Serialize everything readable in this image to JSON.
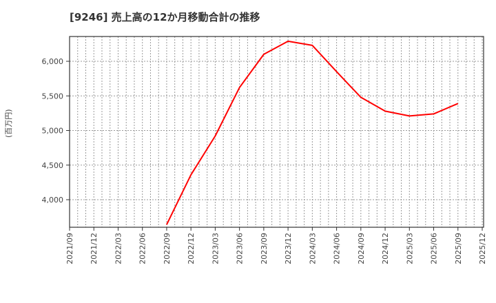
{
  "title": "[9246]  売上高の12か月移動合計の推移",
  "y_axis_label": "(百万円)",
  "colors": {
    "line": "#ff0000",
    "grid": "#999999",
    "axis": "#333333"
  },
  "chart_data": {
    "type": "line",
    "title": "[9246]  売上高の12か月移動合計の推移",
    "xlabel": "",
    "ylabel": "(百万円)",
    "ylim": [
      3600,
      6360
    ],
    "grid": true,
    "legend": "none",
    "x_ticks": [
      "2021/09",
      "2021/12",
      "2022/03",
      "2022/06",
      "2022/09",
      "2022/12",
      "2023/03",
      "2023/06",
      "2023/09",
      "2023/12",
      "2024/03",
      "2024/06",
      "2024/09",
      "2024/12",
      "2025/03",
      "2025/06",
      "2025/09",
      "2025/12"
    ],
    "y_ticks": [
      "4,000",
      "4,500",
      "5,000",
      "5,500",
      "6,000"
    ],
    "y_tick_values": [
      4000,
      4500,
      5000,
      5500,
      6000
    ],
    "series": [
      {
        "name": "売上高(12か月移動合計)",
        "x": [
          "2022/09",
          "2022/12",
          "2023/03",
          "2023/06",
          "2023/09",
          "2023/12",
          "2024/03",
          "2024/06",
          "2024/09",
          "2024/12",
          "2025/03",
          "2025/06",
          "2025/09"
        ],
        "values": [
          3640,
          4360,
          4920,
          5620,
          6100,
          6290,
          6230,
          5850,
          5480,
          5280,
          5210,
          5240,
          5390
        ]
      }
    ]
  }
}
